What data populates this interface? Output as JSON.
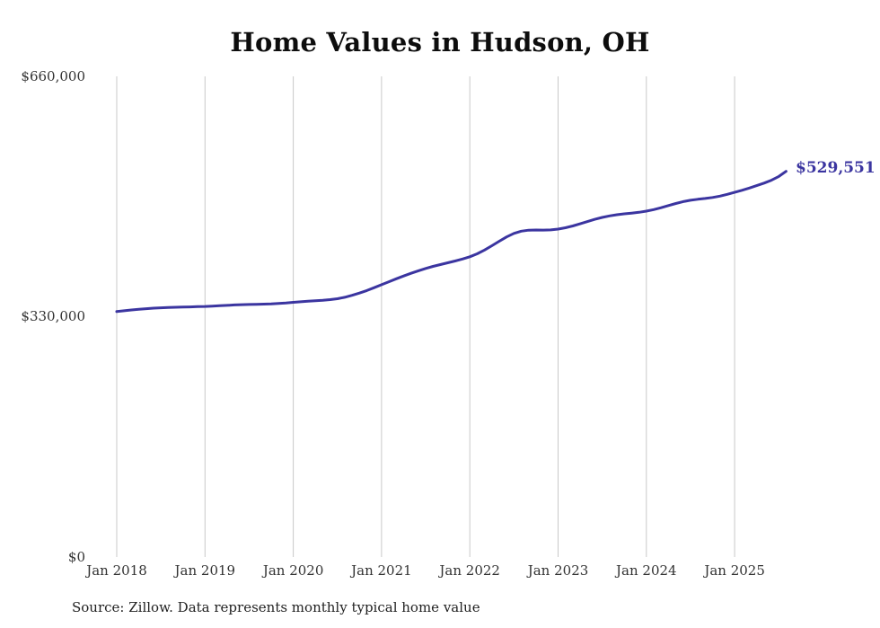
{
  "page": {
    "title": "Home Values in Hudson, OH",
    "source_note": "Source: Zillow. Data represents monthly typical home value"
  },
  "chart_data": {
    "type": "line",
    "title": "Home Values in Hudson, OH",
    "series_name": "Monthly typical home value",
    "x_start": "Jan 2018",
    "x_end": "Aug 2025",
    "x_interval": "monthly",
    "x_tick_labels": [
      "Jan 2018",
      "Jan 2019",
      "Jan 2020",
      "Jan 2021",
      "Jan 2022",
      "Jan 2023",
      "Jan 2024",
      "Jan 2025"
    ],
    "y_tick_labels": [
      "$0",
      "$330,000",
      "$660,000"
    ],
    "ylim": [
      0,
      660000
    ],
    "grid": "vertical-only",
    "line_color": "#3b35a0",
    "grid_color": "#c9c9c9",
    "end_value": 529551,
    "end_value_label": "$529,551",
    "values": [
      337000,
      338100,
      339200,
      340100,
      341000,
      341700,
      342200,
      342600,
      342900,
      343200,
      343500,
      343800,
      344100,
      344500,
      345000,
      345600,
      346100,
      346500,
      346800,
      347000,
      347300,
      347700,
      348200,
      348900,
      349700,
      350500,
      351300,
      352000,
      352600,
      353400,
      354700,
      356700,
      359300,
      362400,
      365900,
      369800,
      373900,
      378000,
      382000,
      385900,
      389600,
      393100,
      396300,
      399100,
      401600,
      404000,
      406500,
      409200,
      412300,
      416400,
      421500,
      427400,
      433600,
      439500,
      444300,
      447400,
      448800,
      449100,
      448900,
      449200,
      450300,
      452100,
      454600,
      457600,
      460700,
      463700,
      466300,
      468400,
      470000,
      471200,
      472200,
      473400,
      475000,
      477100,
      479700,
      482600,
      485500,
      488000,
      489900,
      491200,
      492300,
      493700,
      495600,
      498000,
      500700,
      503600,
      506700,
      510000,
      513500,
      517400,
      522600,
      529551
    ]
  }
}
